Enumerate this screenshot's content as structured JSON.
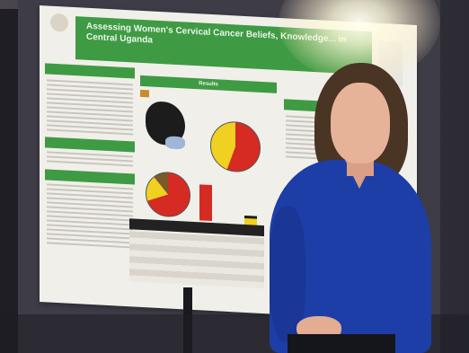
{
  "poster": {
    "title": "Assessing Women's Cervical Cancer Beliefs, Knowledge... in Central Uganda",
    "authors": "",
    "sections": {
      "left_top": "",
      "results": "Results",
      "left_mid": "",
      "left_bottom": ""
    }
  },
  "colors": {
    "poster_green": "#3f9a44",
    "blouse_blue": "#1d3ea6",
    "pie_red": "#d62b22",
    "pie_yellow": "#f0d020"
  }
}
